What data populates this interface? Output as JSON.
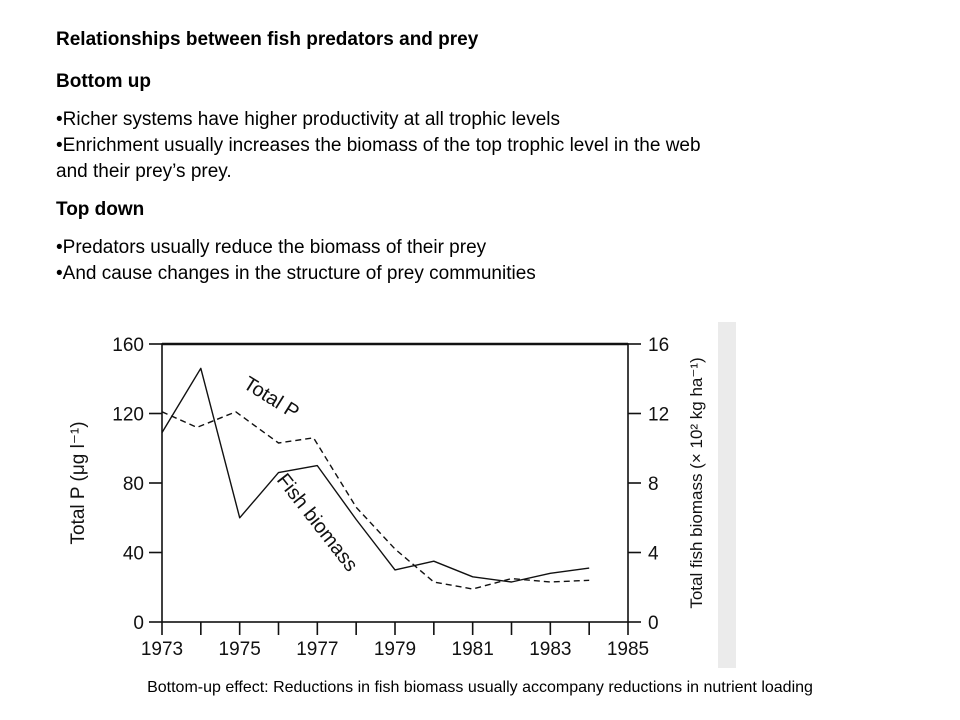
{
  "slide": {
    "title": "Relationships between fish predators and prey",
    "sections": [
      {
        "heading": "Bottom up",
        "bullets": [
          "•Richer systems have higher productivity at all trophic levels",
          "•Enrichment usually increases the biomass of the top trophic level in the web",
          "and their prey’s prey."
        ]
      },
      {
        "heading": "Top down",
        "bullets": [
          "•Predators usually reduce the biomass of their prey",
          "•And cause changes in the structure of prey communities"
        ]
      }
    ],
    "caption": "Bottom-up  effect: Reductions in fish biomass usually accompany reductions in nutrient loading"
  },
  "chart_data": {
    "type": "line",
    "title": "",
    "xlabel": "",
    "ylabel": "Total P (μg l⁻¹)",
    "ylabel2": "Total fish biomass (× 10² kg ha⁻¹)",
    "xlim": [
      1973,
      1985
    ],
    "ylim": [
      0,
      160
    ],
    "ylim2": [
      0,
      16
    ],
    "x_ticks": [
      1973,
      1974,
      1975,
      1976,
      1977,
      1978,
      1979,
      1980,
      1981,
      1982,
      1983,
      1984,
      1985
    ],
    "x_tick_labels": [
      {
        "x": 1973,
        "label": "1973"
      },
      {
        "x": 1975,
        "label": "1975"
      },
      {
        "x": 1977,
        "label": "1977"
      },
      {
        "x": 1979,
        "label": "1979"
      },
      {
        "x": 1981,
        "label": "1981"
      },
      {
        "x": 1983,
        "label": "1983"
      },
      {
        "x": 1985,
        "label": "1985"
      }
    ],
    "y_ticks": [
      0,
      40,
      80,
      120,
      160
    ],
    "y_tick_labels": [
      "0",
      "40",
      "80",
      "120",
      "160"
    ],
    "y2_ticks": [
      0,
      4,
      8,
      12,
      16
    ],
    "y2_tick_labels": [
      "0",
      "4",
      "8",
      "12",
      "16"
    ],
    "grid": false,
    "legend": "none",
    "series": [
      {
        "name": "Total P",
        "axis": "left",
        "style": "dashed",
        "color": "#111111",
        "x": [
          1973,
          1973.9,
          1974.9,
          1976,
          1976.9,
          1978,
          1979,
          1980,
          1981,
          1982,
          1983,
          1984
        ],
        "y": [
          121,
          112,
          121,
          103,
          106,
          66,
          42,
          23,
          19,
          25,
          23,
          24
        ]
      },
      {
        "name": "Fish biomass",
        "axis": "right",
        "style": "solid",
        "color": "#111111",
        "x": [
          1973,
          1974,
          1975,
          1976,
          1977,
          1978,
          1979,
          1980,
          1981,
          1982,
          1983,
          1984
        ],
        "y": [
          10.9,
          14.6,
          6.0,
          8.6,
          9.0,
          5.9,
          3.0,
          3.5,
          2.6,
          2.3,
          2.8,
          3.1
        ]
      }
    ],
    "annotations": [
      "Total P",
      "Fish biomass"
    ]
  }
}
